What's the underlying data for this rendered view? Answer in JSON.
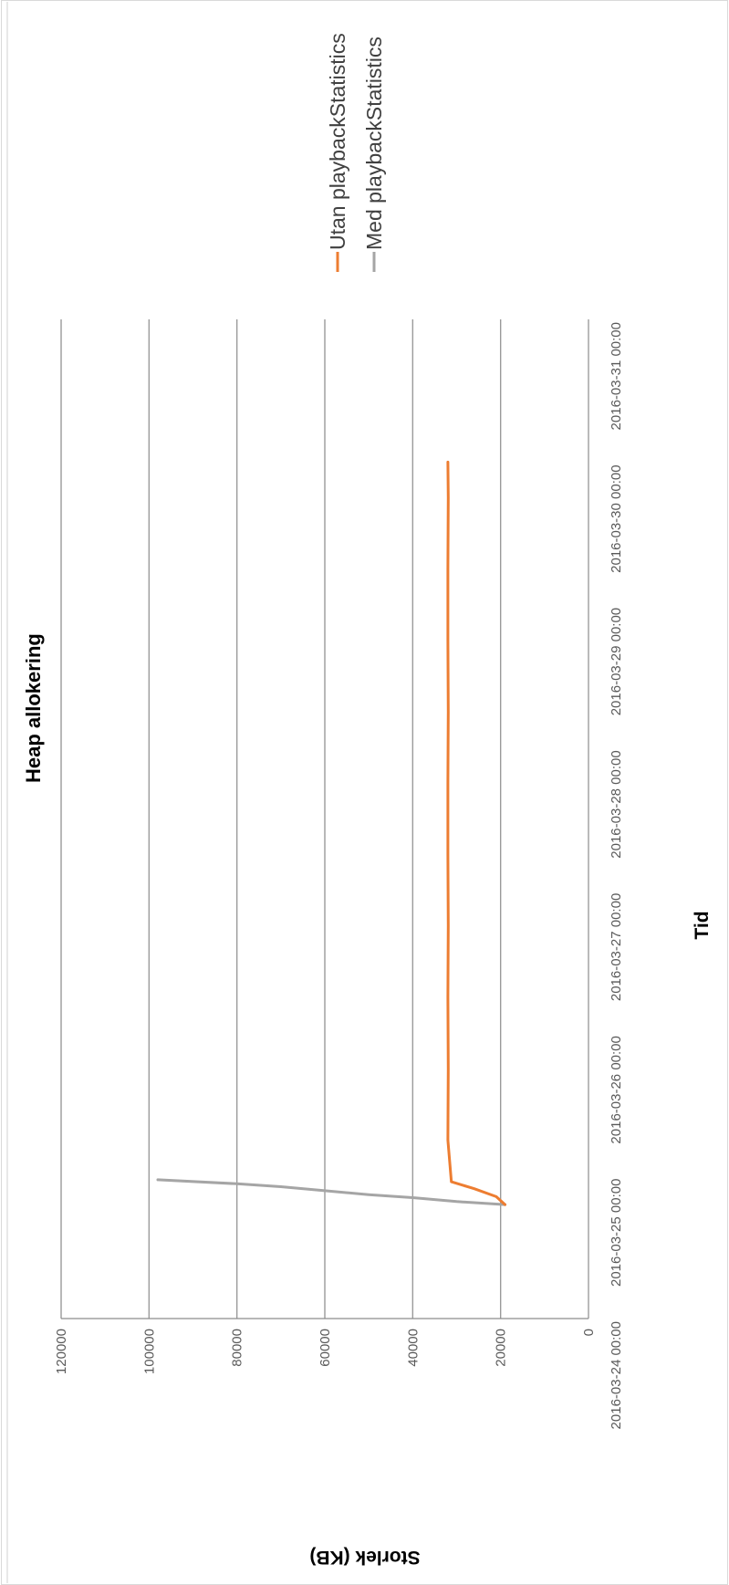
{
  "chart_data": {
    "type": "line",
    "title": "Heap allokering",
    "xlabel": "Tid",
    "ylabel": "Storlek (KB)",
    "x_ticks": [
      "2016-03-24 00:00",
      "2016-03-25 00:00",
      "2016-03-26 00:00",
      "2016-03-27 00:00",
      "2016-03-28 00:00",
      "2016-03-29 00:00",
      "2016-03-30 00:00",
      "2016-03-31 00:00"
    ],
    "xlim": [
      "2016-03-24 00:00",
      "2016-03-31 00:00"
    ],
    "y_ticks": [
      "0",
      "20000",
      "40000",
      "60000",
      "80000",
      "100000",
      "120000"
    ],
    "ylim": [
      0,
      120000
    ],
    "grid": true,
    "legend": "right",
    "series": [
      {
        "name": "Utan playbackStatistics",
        "color": "#ED7D31",
        "x": [
          "2016-03-24 19:10",
          "2016-03-24 20:30",
          "2016-03-24 21:50",
          "2016-03-24 23:00",
          "2016-03-25 06:00",
          "2016-03-25 18:00",
          "2016-03-26 06:00",
          "2016-03-26 18:00",
          "2016-03-27 06:00",
          "2016-03-27 18:00",
          "2016-03-28 06:00",
          "2016-03-28 18:00",
          "2016-03-29 06:00",
          "2016-03-29 18:00",
          "2016-03-30 00:00"
        ],
        "y": [
          19000,
          21000,
          26000,
          31200,
          32000,
          31900,
          32000,
          31900,
          32000,
          32000,
          31900,
          32000,
          32000,
          31900,
          32000
        ]
      },
      {
        "name": "Med playbackStatistics",
        "color": "#A5A5A5",
        "x": [
          "2016-03-24 19:10",
          "2016-03-24 19:40",
          "2016-03-24 20:20",
          "2016-03-24 20:50",
          "2016-03-24 21:30",
          "2016-03-24 22:10",
          "2016-03-24 22:40",
          "2016-03-24 23:20"
        ],
        "y": [
          19000,
          30000,
          40000,
          50000,
          60000,
          70000,
          80000,
          98000
        ]
      }
    ]
  },
  "colors": {
    "grid": "#9a9a9a",
    "text": "#595959"
  }
}
